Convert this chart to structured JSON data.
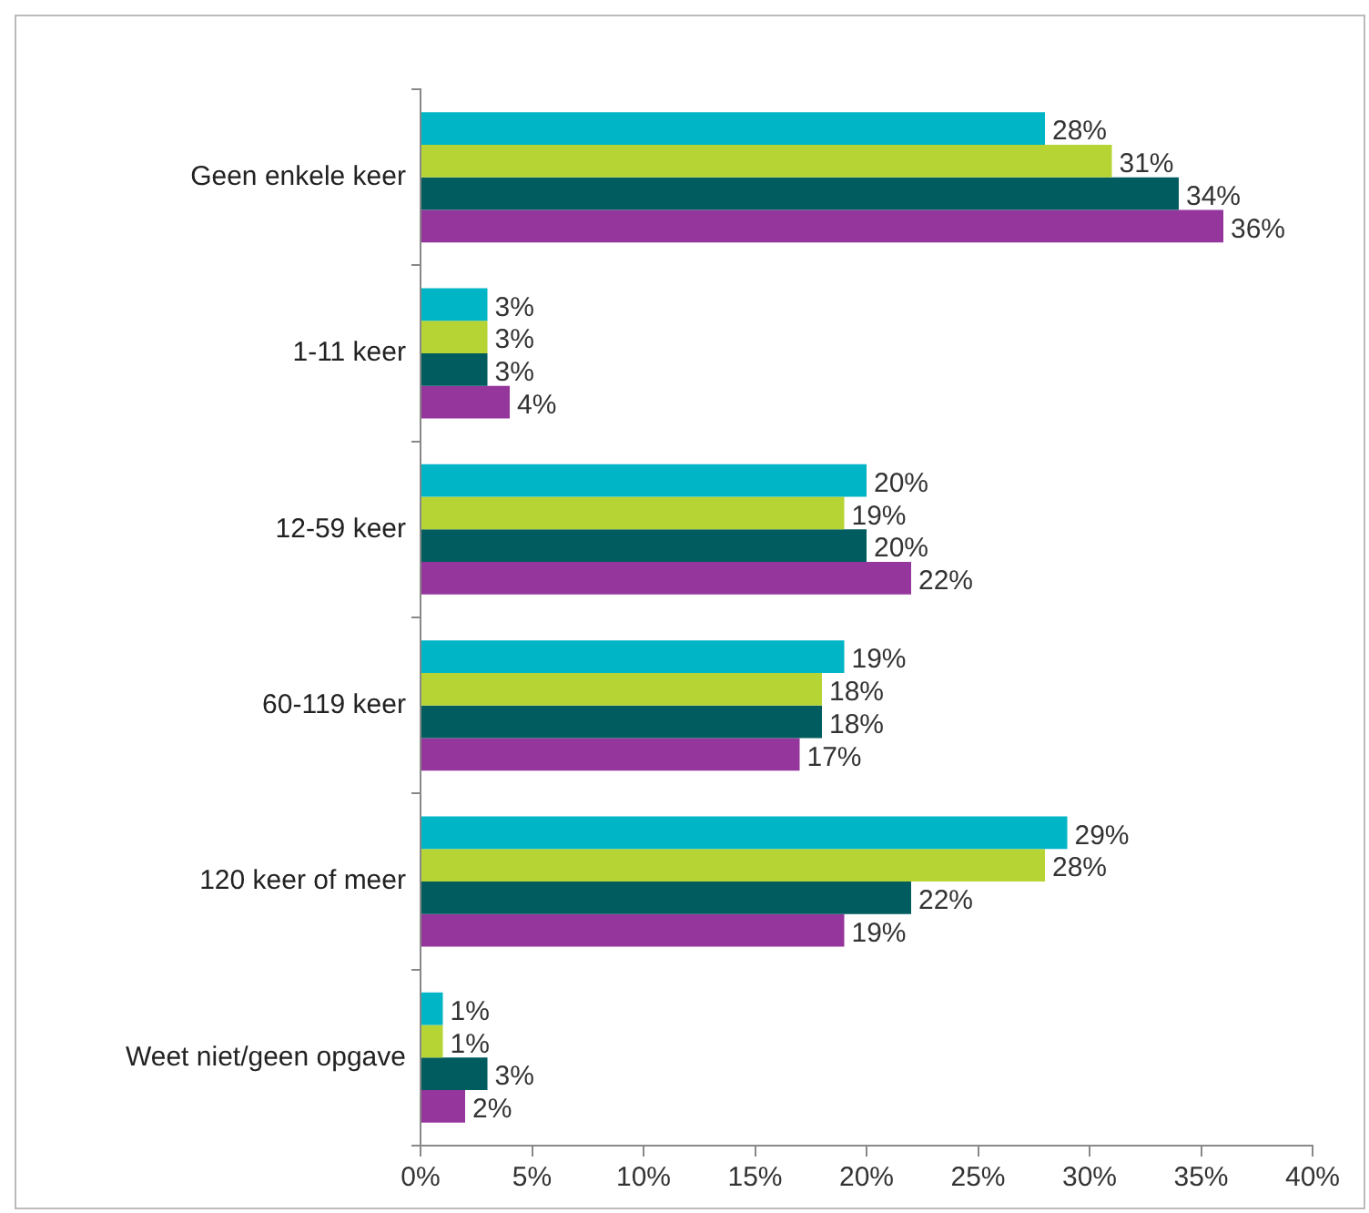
{
  "chart_data": {
    "type": "bar",
    "orientation": "horizontal",
    "categories": [
      "Geen enkele keer",
      "1-11 keer",
      "12-59 keer",
      "60-119 keer",
      "120 keer of meer",
      "Weet niet/geen opgave"
    ],
    "series": [
      {
        "color": "#00b5c6",
        "values": [
          28,
          3,
          20,
          19,
          29,
          1
        ],
        "value_labels": [
          "28%",
          "3%",
          "20%",
          "19%",
          "29%",
          "1%"
        ]
      },
      {
        "color": "#b6d433",
        "values": [
          31,
          3,
          19,
          18,
          28,
          1
        ],
        "value_labels": [
          "31%",
          "3%",
          "19%",
          "18%",
          "28%",
          "1%"
        ]
      },
      {
        "color": "#005c5e",
        "values": [
          34,
          3,
          20,
          18,
          22,
          3
        ],
        "value_labels": [
          "34%",
          "3%",
          "20%",
          "18%",
          "22%",
          "3%"
        ]
      },
      {
        "color": "#94369c",
        "values": [
          36,
          4,
          22,
          17,
          19,
          2
        ],
        "value_labels": [
          "36%",
          "4%",
          "22%",
          "17%",
          "19%",
          "2%"
        ]
      }
    ],
    "xlim": [
      0,
      40
    ],
    "xticks": [
      {
        "value": 0,
        "label": "0%"
      },
      {
        "value": 5,
        "label": "5%"
      },
      {
        "value": 10,
        "label": "10%"
      },
      {
        "value": 15,
        "label": "15%"
      },
      {
        "value": 20,
        "label": "20%"
      },
      {
        "value": 25,
        "label": "25%"
      },
      {
        "value": 30,
        "label": "30%"
      },
      {
        "value": 35,
        "label": "35%"
      },
      {
        "value": 40,
        "label": "40%"
      }
    ],
    "grid": false,
    "legend": false
  }
}
